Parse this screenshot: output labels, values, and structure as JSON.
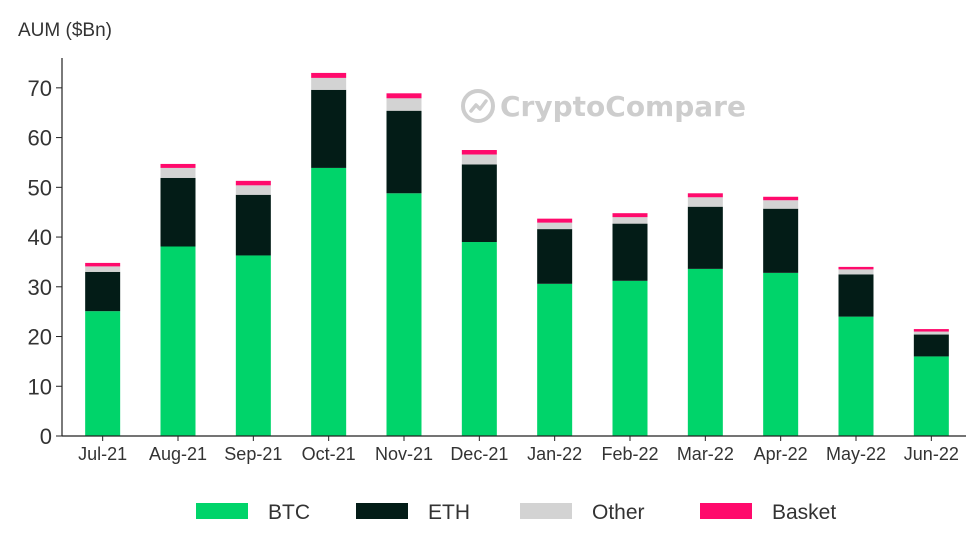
{
  "chart_data": {
    "type": "bar",
    "stacked": true,
    "ylabel": "AUM ($Bn)",
    "xlabel": "",
    "ylim": [
      0,
      76
    ],
    "yticks": [
      0,
      10,
      20,
      30,
      40,
      50,
      60,
      70
    ],
    "grid": false,
    "legend_position": "bottom",
    "watermark": "CryptoCompare",
    "categories": [
      "Jul-21",
      "Aug-21",
      "Sep-21",
      "Oct-21",
      "Nov-21",
      "Dec-21",
      "Jan-22",
      "Feb-22",
      "Mar-22",
      "Apr-22",
      "May-22",
      "Jun-22"
    ],
    "series": [
      {
        "name": "BTC",
        "color": "#00d46a",
        "values": [
          25.1,
          38.1,
          36.3,
          53.9,
          48.8,
          39.0,
          30.6,
          31.2,
          33.6,
          32.8,
          24.0,
          16.0
        ]
      },
      {
        "name": "ETH",
        "color": "#031c17",
        "values": [
          7.9,
          13.8,
          12.2,
          15.7,
          16.6,
          15.6,
          11.0,
          11.5,
          12.5,
          12.9,
          8.5,
          4.4
        ]
      },
      {
        "name": "Other",
        "color": "#d3d3d3",
        "values": [
          1.1,
          2.0,
          1.9,
          2.4,
          2.5,
          2.0,
          1.3,
          1.3,
          1.9,
          1.7,
          1.0,
          0.6
        ]
      },
      {
        "name": "Basket",
        "color": "#ff0a6c",
        "values": [
          0.7,
          0.8,
          0.9,
          1.0,
          1.0,
          0.9,
          0.8,
          0.8,
          0.8,
          0.7,
          0.5,
          0.5
        ]
      }
    ]
  }
}
